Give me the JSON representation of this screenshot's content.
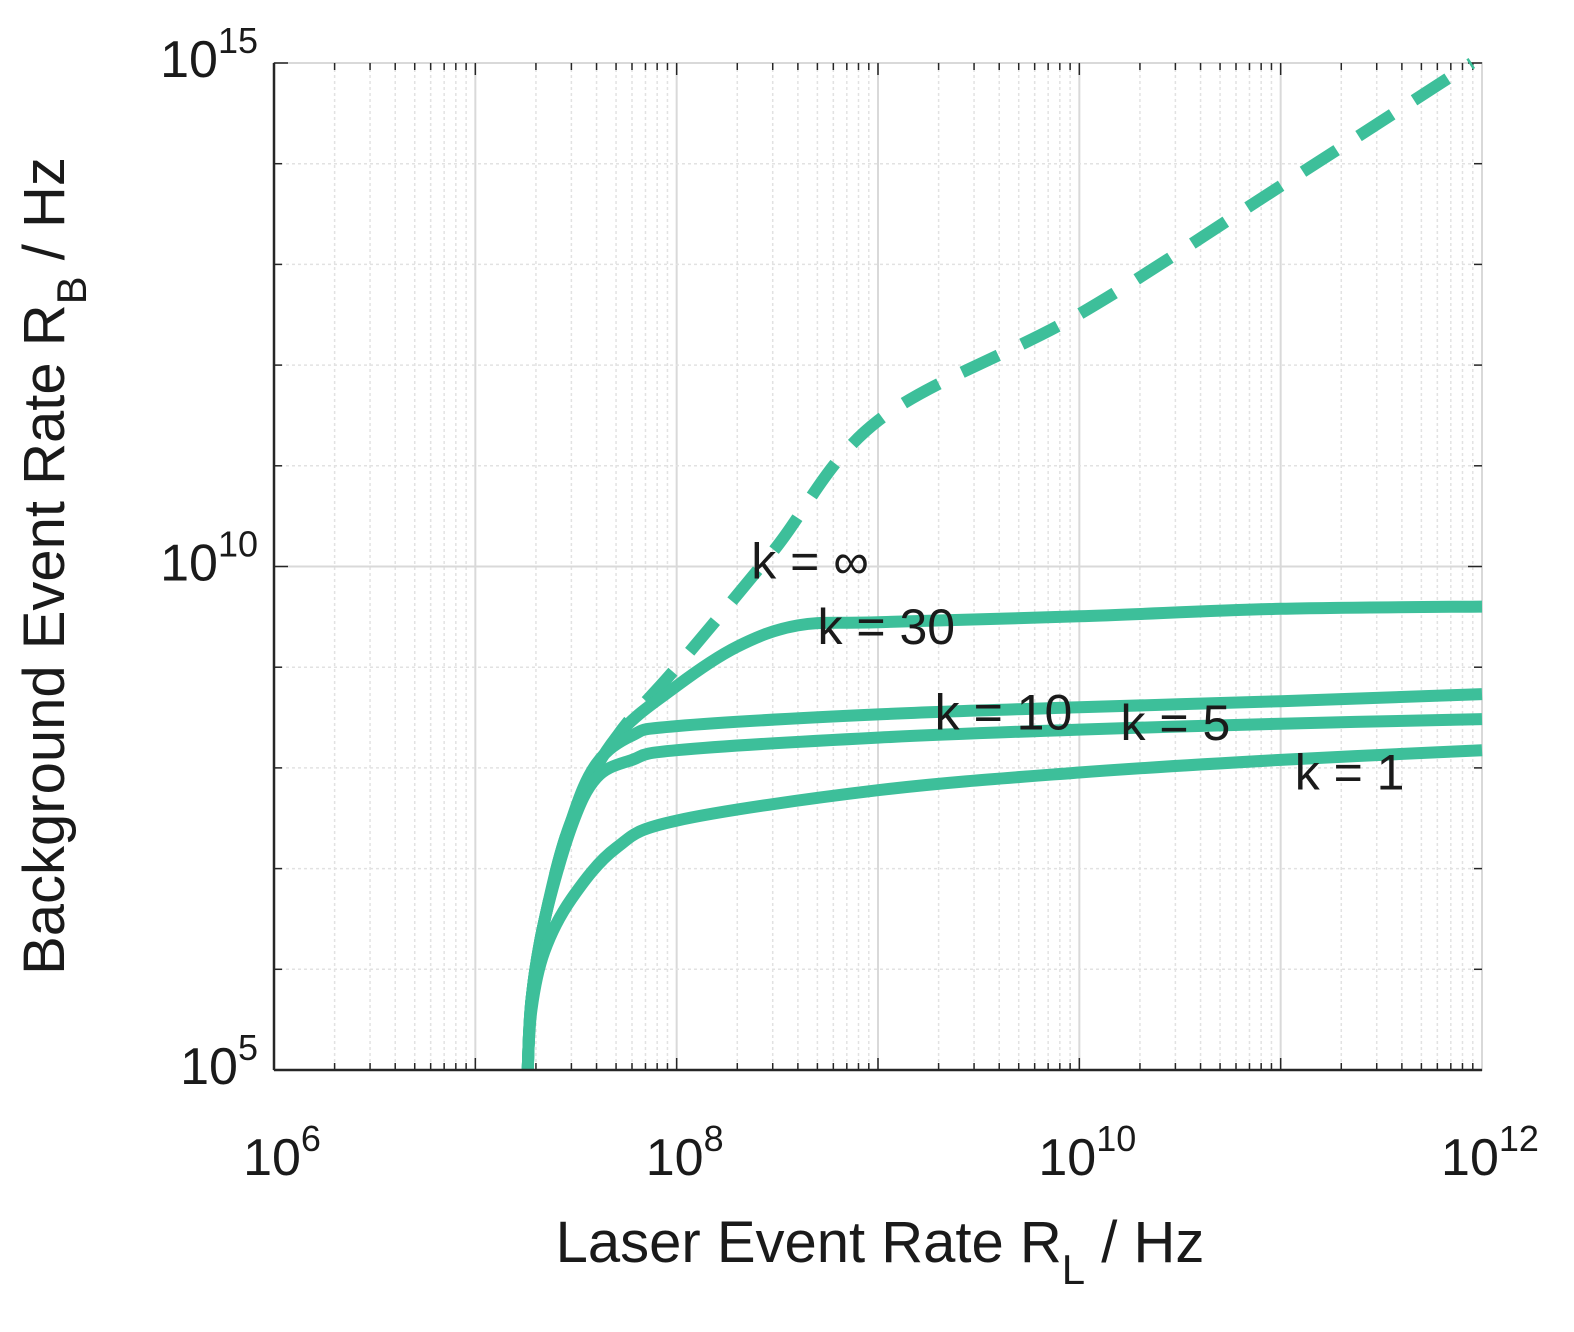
{
  "chart_data": {
    "type": "line",
    "title": "",
    "xscale": "log",
    "yscale": "log",
    "xlim": [
      1000000.0,
      1000000000000.0
    ],
    "ylim": [
      100000.0,
      1000000000000000.0
    ],
    "xlabel": {
      "text": "Laser Event Rate R",
      "sub": "L",
      "suffix": " / Hz"
    },
    "ylabel": {
      "text": "Background Event Rate R",
      "sub": "B",
      "suffix": " / Hz"
    },
    "xticks": [
      {
        "base": "10",
        "exp": "6",
        "value": 1000000.0
      },
      {
        "base": "10",
        "exp": "8",
        "value": 100000000.0
      },
      {
        "base": "10",
        "exp": "10",
        "value": 10000000000.0
      },
      {
        "base": "10",
        "exp": "12",
        "value": 1000000000000.0
      }
    ],
    "yticks": [
      {
        "base": "10",
        "exp": "5",
        "value": 100000.0
      },
      {
        "base": "10",
        "exp": "10",
        "value": 10000000000.0
      },
      {
        "base": "10",
        "exp": "15",
        "value": 1000000000000000.0
      }
    ],
    "grid": true,
    "color": "#3dbf9a",
    "series": [
      {
        "name": "k = ∞",
        "label": "k = ∞",
        "dashed": true,
        "x": [
          18200000.0,
          19000000.0,
          22000000.0,
          30000000.0,
          50000000.0,
          100000000.0,
          300000000.0,
          1000000000.0,
          10000000000.0,
          100000000000.0,
          890000000000.0
        ],
        "y": [
          100000.0,
          500000.0,
          3000000.0,
          30000000.0,
          200000000.0,
          1000000000.0,
          14000000000.0,
          280000000000.0,
          3200000000000.0,
          60000000000000.0,
          1000000000000000.0
        ],
        "label_at": [
          460000000.0,
          11200000000.0
        ]
      },
      {
        "name": "k = 30",
        "label": "k = 30",
        "dashed": false,
        "x": [
          18200000.0,
          19000000.0,
          22000000.0,
          30000000.0,
          50000000.0,
          100000000.0,
          200000000.0,
          400000000.0,
          1000000000.0,
          10000000000.0,
          100000000000.0,
          1000000000000.0
        ],
        "y": [
          100000.0,
          500000.0,
          3000000.0,
          30000000.0,
          200000000.0,
          650000000.0,
          1600000000.0,
          2600000000.0,
          2800000000.0,
          3200000000.0,
          3800000000.0,
          4000000000.0
        ],
        "label_at": [
          1100000000.0,
          2500000000.0
        ]
      },
      {
        "name": "k = 10",
        "label": "k = 10",
        "dashed": false,
        "x": [
          18200000.0,
          19000000.0,
          22000000.0,
          30000000.0,
          40000000.0,
          60000000.0,
          100000000.0,
          1000000000.0,
          10000000000.0,
          100000000000.0,
          1000000000000.0
        ],
        "y": [
          100000.0,
          500000.0,
          3000000.0,
          30000000.0,
          110000000.0,
          210000000.0,
          260000000.0,
          340000000.0,
          400000000.0,
          460000000.0,
          540000000.0
        ],
        "label_at": [
          4200000000.0,
          355000000.0
        ]
      },
      {
        "name": "k = 5",
        "label": "k = 5",
        "dashed": false,
        "x": [
          18200000.0,
          19000000.0,
          22000000.0,
          30000000.0,
          40000000.0,
          60000000.0,
          100000000.0,
          1000000000.0,
          10000000000.0,
          100000000000.0,
          1000000000000.0
        ],
        "y": [
          100000.0,
          500000.0,
          3000000.0,
          26000000.0,
          80000000.0,
          120000000.0,
          150000000.0,
          200000000.0,
          240000000.0,
          275000000.0,
          305000000.0
        ],
        "label_at": [
          30000000000.0,
          280000000.0
        ]
      },
      {
        "name": "k = 1",
        "label": "k = 1",
        "dashed": false,
        "x": [
          18200000.0,
          19000000.0,
          22000000.0,
          30000000.0,
          50000000.0,
          100000000.0,
          1000000000.0,
          10000000000.0,
          100000000000.0,
          1000000000000.0
        ],
        "y": [
          100000.0,
          400000.0,
          1500000.0,
          5000000.0,
          16000000.0,
          30000000.0,
          60000000.0,
          90000000.0,
          120000000.0,
          150000000.0
        ],
        "label_at": [
          220000000000.0,
          90000000.0
        ]
      }
    ]
  }
}
